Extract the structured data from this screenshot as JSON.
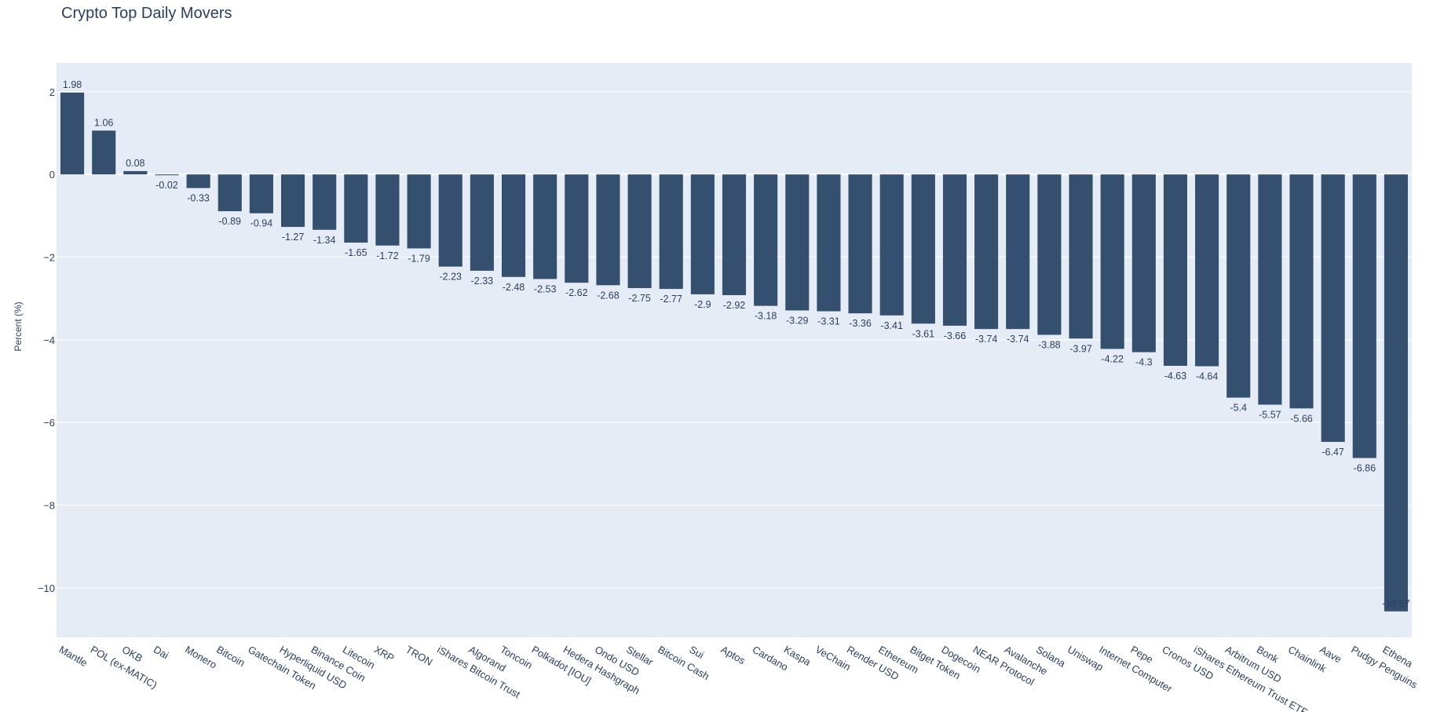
{
  "chart_data": {
    "type": "bar",
    "title": "Crypto Top Daily Movers",
    "xlabel": "",
    "ylabel": "Percent (%)",
    "ylim": [
      -11.2,
      2.7
    ],
    "yticks": [
      2,
      0,
      -2,
      -4,
      -6,
      -8,
      -10
    ],
    "ytick_labels": [
      "2",
      "0",
      "−2",
      "−4",
      "−6",
      "−8",
      "−10"
    ],
    "grid": true,
    "bar_color": "#34506e",
    "plot_bg": "#e5ecf6",
    "categories": [
      "Mantle",
      "POL (ex-MATIC)",
      "OKB",
      "Dai",
      "Monero",
      "Bitcoin",
      "Gatechain Token",
      "Hyperliquid USD",
      "Binance Coin",
      "Litecoin",
      "XRP",
      "TRON",
      "iShares Bitcoin Trust",
      "Algorand",
      "Toncoin",
      "Polkadot [IOU]",
      "Hedera Hashgraph",
      "Ondo USD",
      "Stellar",
      "Bitcoin Cash",
      "Sui",
      "Aptos",
      "Cardano",
      "Kaspa",
      "VeChain",
      "Render USD",
      "Ethereum",
      "Bitget Token",
      "Dogecoin",
      "NEAR Protocol",
      "Avalanche",
      "Solana",
      "Uniswap",
      "Internet Computer",
      "Pepe",
      "Cronos USD",
      "iShares Ethereum Trust ETF",
      "Arbitrum USD",
      "Bonk",
      "Chainlink",
      "Aave",
      "Pudgy Penguins",
      "Ethena"
    ],
    "values": [
      1.98,
      1.06,
      0.08,
      -0.02,
      -0.33,
      -0.89,
      -0.94,
      -1.27,
      -1.34,
      -1.65,
      -1.72,
      -1.79,
      -2.23,
      -2.33,
      -2.48,
      -2.53,
      -2.62,
      -2.68,
      -2.75,
      -2.77,
      -2.9,
      -2.92,
      -3.18,
      -3.29,
      -3.31,
      -3.36,
      -3.41,
      -3.61,
      -3.66,
      -3.74,
      -3.74,
      -3.88,
      -3.97,
      -4.22,
      -4.3,
      -4.63,
      -4.64,
      -5.4,
      -5.57,
      -5.66,
      -6.47,
      -6.86,
      -10.57
    ],
    "value_labels": [
      "1.98",
      "1.06",
      "0.08",
      "-0.02",
      "-0.33",
      "-0.89",
      "-0.94",
      "-1.27",
      "-1.34",
      "-1.65",
      "-1.72",
      "-1.79",
      "-2.23",
      "-2.33",
      "-2.48",
      "-2.53",
      "-2.62",
      "-2.68",
      "-2.75",
      "-2.77",
      "-2.9",
      "-2.92",
      "-3.18",
      "-3.29",
      "-3.31",
      "-3.36",
      "-3.41",
      "-3.61",
      "-3.66",
      "-3.74",
      "-3.74",
      "-3.88",
      "-3.97",
      "-4.22",
      "-4.3",
      "-4.63",
      "-4.64",
      "-5.4",
      "-5.57",
      "-5.66",
      "-6.47",
      "-6.86",
      "-10.57"
    ]
  }
}
